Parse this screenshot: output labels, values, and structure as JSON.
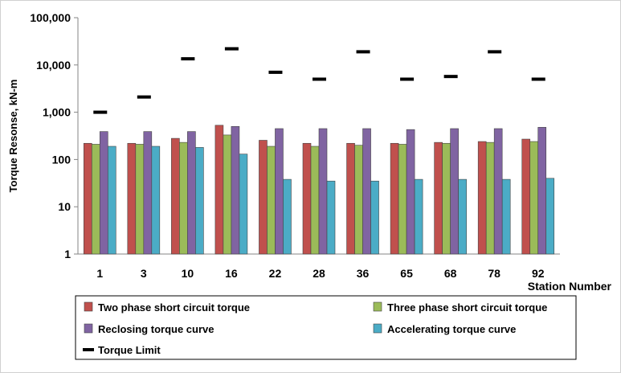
{
  "chart_data": {
    "type": "bar",
    "y_scale": "log",
    "ylim": [
      1,
      100000
    ],
    "y_ticks": [
      1,
      10,
      100,
      1000,
      10000,
      100000
    ],
    "y_tick_labels": [
      "1",
      "10",
      "100",
      "1,000",
      "10,000",
      "100,000"
    ],
    "ylabel": "Torque Resonse, kN-m",
    "xlabel": "Station Number",
    "grid": false,
    "legend_position": "bottom",
    "categories": [
      "1",
      "3",
      "10",
      "16",
      "22",
      "28",
      "36",
      "65",
      "68",
      "78",
      "92"
    ],
    "series": [
      {
        "name": "Two phase short circuit torque",
        "color": "#c0504d",
        "values": [
          220,
          220,
          280,
          530,
          255,
          220,
          220,
          220,
          230,
          240,
          270
        ]
      },
      {
        "name": "Three phase short circuit torque",
        "color": "#9bbb59",
        "values": [
          210,
          210,
          230,
          330,
          190,
          190,
          200,
          210,
          220,
          230,
          240
        ]
      },
      {
        "name": "Reclosing torque curve",
        "color": "#8064a2",
        "values": [
          390,
          390,
          390,
          500,
          450,
          450,
          450,
          430,
          450,
          450,
          480
        ]
      },
      {
        "name": "Accelerating torque curve",
        "color": "#4bacc6",
        "values": [
          190,
          190,
          180,
          130,
          38,
          35,
          35,
          38,
          38,
          38,
          40
        ]
      }
    ],
    "limit_series": {
      "name": "Torque Limit",
      "color": "#000000",
      "values": [
        1000,
        2100,
        13500,
        22000,
        7000,
        5000,
        19000,
        5000,
        5700,
        19000,
        5000
      ]
    }
  }
}
